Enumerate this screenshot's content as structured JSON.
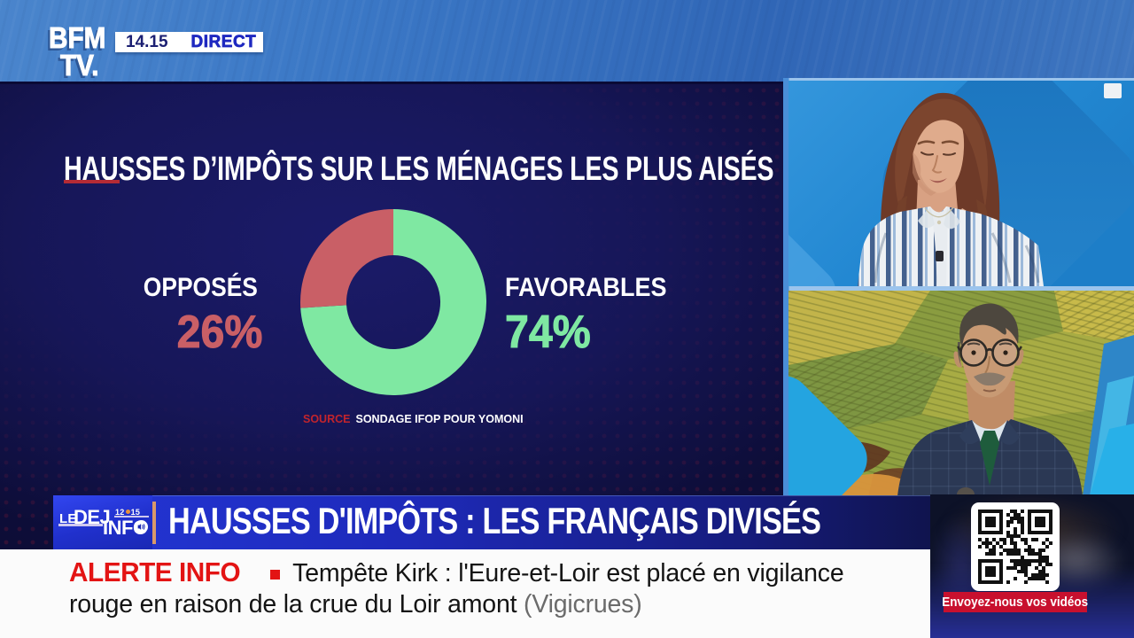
{
  "colors": {
    "band_blue": "#3d7ac8",
    "panel_navy": "#10104a",
    "dot_red": "#96182c",
    "favorable_green": "#7fe8a2",
    "opposed_red": "#c95f66",
    "banner_blue": "#1e2aba",
    "alert_red": "#e31414",
    "qr_banner_red": "#c8102e",
    "live_blue": "#1e28c0"
  },
  "top_bar": {
    "channel_line1": "BFM",
    "channel_line2": "TV.",
    "time": "14.15",
    "live_label": "DIRECT"
  },
  "chart_panel": {
    "title": "HAUSSES D’IMPÔTS SUR LES MÉNAGES LES PLUS AISÉS",
    "left_label": "OPPOSÉS",
    "left_value": "26%",
    "right_label": "FAVORABLES",
    "right_value": "74%",
    "source_prefix": "SOURCE",
    "source_text": "SONDAGE IFOP POUR YOMONI"
  },
  "chart_data": {
    "type": "pie",
    "donut": true,
    "title": "HAUSSES D’IMPÔTS SUR LES MÉNAGES LES PLUS AISÉS",
    "categories": [
      "FAVORABLES",
      "OPPOSÉS"
    ],
    "values": [
      74,
      26
    ],
    "unit": "%",
    "colors": [
      "#7fe8a2",
      "#c95f66"
    ],
    "start_angle_deg": 0,
    "clockwise": true,
    "inner_radius_ratio": 0.505,
    "source": "SONDAGE IFOP POUR YOMONI"
  },
  "program_banner": {
    "logo": {
      "le": "LE",
      "dej": "DEJ",
      "time_left": "12",
      "time_right": "15",
      "info": "INFO"
    },
    "headline": "HAUSSES D'IMPÔTS : LES FRANÇAIS DIVISÉS"
  },
  "alert_banner": {
    "label": "ALERTE INFO",
    "message": "Tempête Kirk : l'Eure-et-Loir est placé en vigilance rouge en raison de la crue du Loir amont",
    "attribution": "(Vigicrues)"
  },
  "qr_panel": {
    "cta": "Envoyez-nous vos vidéos",
    "qr_matrix": [
      "111111100110101111111",
      "100000101011001000001",
      "101110100111101011101",
      "101110101101101011101",
      "101110101000101011101",
      "100000100010101000001",
      "111111101010101111111",
      "000000001111000000000",
      "101010110100110110010",
      "011101010110010000101",
      "101010100010001000010",
      "000110011111011101100",
      "001110101111001111000",
      "000000000000100001110",
      "111111100111111111110",
      "100000100011111001011",
      "101110101110110010100",
      "101110100001110001100",
      "101110100000010111110",
      "100000100010001111100",
      "111111101000010000010"
    ]
  }
}
